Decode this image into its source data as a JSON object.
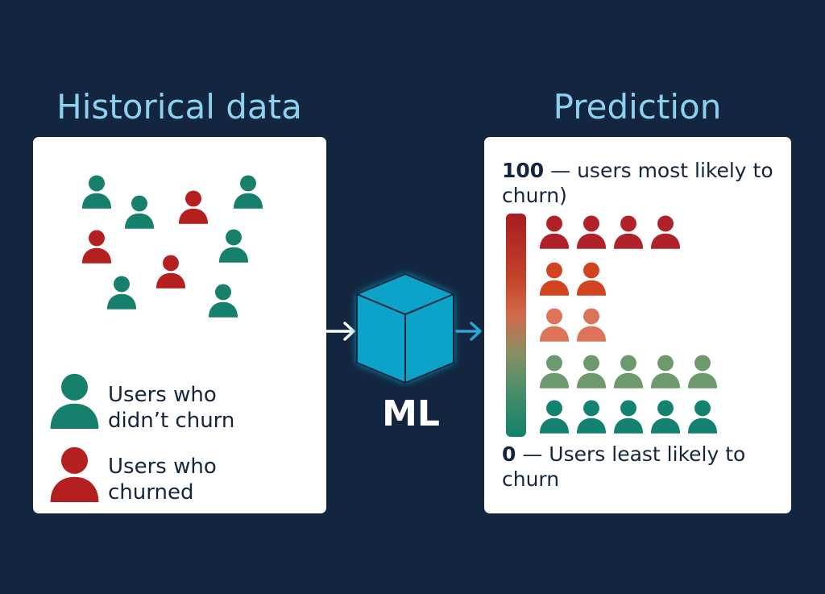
{
  "historical": {
    "title": "Historical data",
    "legend": {
      "no_churn_label": "Users who\ndidn’t churn",
      "churn_label": "Users who\nchurned"
    }
  },
  "ml": {
    "label": "ML"
  },
  "prediction": {
    "title": "Prediction",
    "top_value": "100",
    "top_text": " — users most likely to churn)",
    "bottom_value": "0",
    "bottom_text": " — Users least likely to churn",
    "rows": [
      {
        "count": 4,
        "color": "#b0222a"
      },
      {
        "count": 2,
        "color": "#d2441f"
      },
      {
        "count": 2,
        "color": "#dd7358"
      },
      {
        "count": 5,
        "color": "#6d9a6d"
      },
      {
        "count": 5,
        "color": "#148270"
      }
    ]
  },
  "colors": {
    "background": "#13253f",
    "heading": "#8cd1f0",
    "no_churn": "#16806d",
    "churn": "#b3201f",
    "cube": "#0fa3c8",
    "arrow_in": "#ffffff",
    "arrow_out": "#2aa6d6"
  },
  "icon_name": "user-icon"
}
